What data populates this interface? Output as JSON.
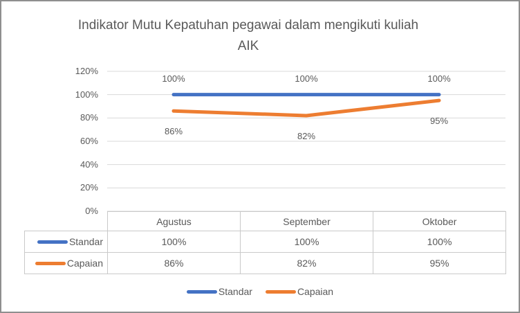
{
  "chart": {
    "title": "Indikator Mutu Kepatuhan pegawai dalam mengikuti kuliah AIK"
  },
  "chart_data": {
    "type": "line",
    "title": "Indikator Mutu Kepatuhan pegawai dalam mengikuti kuliah AIK",
    "categories": [
      "Agustus",
      "September",
      "Oktober"
    ],
    "series": [
      {
        "name": "Standar",
        "values": [
          100,
          100,
          100
        ],
        "color": "#4472C4",
        "label_position": "above"
      },
      {
        "name": "Capaian",
        "values": [
          86,
          82,
          95
        ],
        "color": "#ED7D31",
        "label_position": "below"
      }
    ],
    "value_suffix": "%",
    "ylim": [
      0,
      120
    ],
    "ytick_step": 20,
    "ytick_labels": [
      "0%",
      "20%",
      "40%",
      "60%",
      "80%",
      "100%",
      "120%"
    ],
    "grid": true,
    "gridline_color": "#D9D9D9",
    "text_color": "#595959",
    "legend_position": "bottom",
    "data_table": true
  },
  "table": {
    "corner": "",
    "columns": [
      "Agustus",
      "September",
      "Oktober"
    ],
    "rows": [
      {
        "label": "Standar",
        "values": [
          "100%",
          "100%",
          "100%"
        ]
      },
      {
        "label": "Capaian",
        "values": [
          "86%",
          "82%",
          "95%"
        ]
      }
    ]
  },
  "legend": {
    "items": [
      {
        "label": "Standar"
      },
      {
        "label": "Capaian"
      }
    ]
  }
}
